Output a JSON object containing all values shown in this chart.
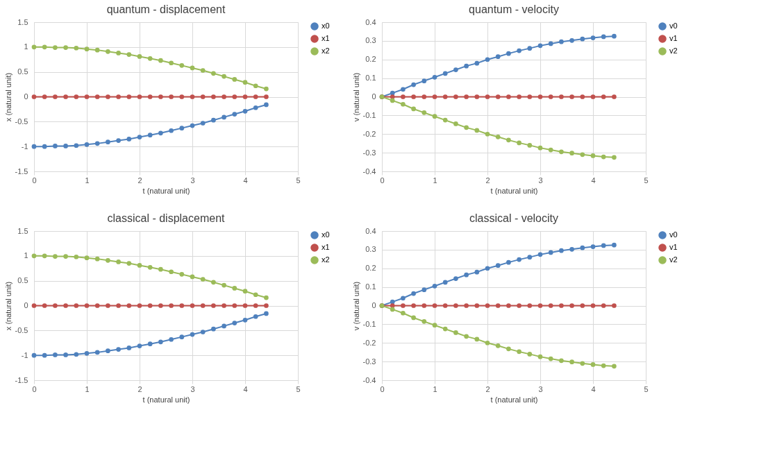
{
  "chart_data": [
    {
      "type": "line",
      "title": "quantum - displacement",
      "xlabel": "t (natural unit)",
      "ylabel": "x (natural unit)",
      "x": [
        0,
        0.2,
        0.4,
        0.6,
        0.8,
        1,
        1.2,
        1.4,
        1.6,
        1.8,
        2,
        2.2,
        2.4,
        2.6,
        2.8,
        3,
        3.2,
        3.4,
        3.6,
        3.8,
        4,
        4.2,
        4.4
      ],
      "xlim": [
        0,
        5
      ],
      "xticks": [
        0,
        1,
        2,
        3,
        4,
        5
      ],
      "ylim": [
        -1.5,
        1.5
      ],
      "yticks": [
        -1.5,
        -1,
        -0.5,
        0,
        0.5,
        1,
        1.5
      ],
      "grid": true,
      "legend": "right",
      "marker": "circle",
      "line_style": "solid",
      "series": [
        {
          "name": "x0",
          "color": "#4f81bd",
          "values": [
            -1.0,
            -1.0,
            -0.99,
            -0.99,
            -0.98,
            -0.96,
            -0.94,
            -0.91,
            -0.88,
            -0.85,
            -0.81,
            -0.77,
            -0.73,
            -0.68,
            -0.63,
            -0.58,
            -0.53,
            -0.47,
            -0.41,
            -0.35,
            -0.29,
            -0.22,
            -0.16
          ]
        },
        {
          "name": "x1",
          "color": "#c0504d",
          "values": [
            0,
            0,
            0,
            0,
            0,
            0,
            0,
            0,
            0,
            0,
            0,
            0,
            0,
            0,
            0,
            0,
            0,
            0,
            0,
            0,
            0,
            0,
            0
          ]
        },
        {
          "name": "x2",
          "color": "#9bbb59",
          "values": [
            1.0,
            1.0,
            0.99,
            0.99,
            0.98,
            0.96,
            0.94,
            0.91,
            0.88,
            0.85,
            0.81,
            0.77,
            0.73,
            0.68,
            0.63,
            0.58,
            0.53,
            0.47,
            0.41,
            0.35,
            0.29,
            0.22,
            0.16
          ]
        }
      ]
    },
    {
      "type": "line",
      "title": "quantum - velocity",
      "xlabel": "t (natural unit)",
      "ylabel": "v (natural unit)",
      "x": [
        0,
        0.2,
        0.4,
        0.6,
        0.8,
        1,
        1.2,
        1.4,
        1.6,
        1.8,
        2,
        2.2,
        2.4,
        2.6,
        2.8,
        3,
        3.2,
        3.4,
        3.6,
        3.8,
        4,
        4.2,
        4.4
      ],
      "xlim": [
        0,
        5
      ],
      "xticks": [
        0,
        1,
        2,
        3,
        4,
        5
      ],
      "ylim": [
        -0.4,
        0.4
      ],
      "yticks": [
        -0.4,
        -0.3,
        -0.2,
        -0.1,
        0,
        0.1,
        0.2,
        0.3,
        0.4
      ],
      "grid": true,
      "legend": "right",
      "marker": "circle",
      "line_style": "solid",
      "series": [
        {
          "name": "v0",
          "color": "#4f81bd",
          "values": [
            0,
            0.02,
            0.04,
            0.065,
            0.085,
            0.105,
            0.125,
            0.145,
            0.165,
            0.18,
            0.2,
            0.215,
            0.232,
            0.247,
            0.26,
            0.274,
            0.285,
            0.295,
            0.302,
            0.31,
            0.316,
            0.322,
            0.325
          ]
        },
        {
          "name": "v1",
          "color": "#c0504d",
          "values": [
            0,
            0,
            0,
            0,
            0,
            0,
            0,
            0,
            0,
            0,
            0,
            0,
            0,
            0,
            0,
            0,
            0,
            0,
            0,
            0,
            0,
            0,
            0
          ]
        },
        {
          "name": "v2",
          "color": "#9bbb59",
          "values": [
            0,
            -0.02,
            -0.04,
            -0.065,
            -0.085,
            -0.105,
            -0.125,
            -0.145,
            -0.165,
            -0.18,
            -0.2,
            -0.215,
            -0.232,
            -0.247,
            -0.26,
            -0.274,
            -0.285,
            -0.295,
            -0.302,
            -0.31,
            -0.316,
            -0.322,
            -0.325
          ]
        }
      ]
    },
    {
      "type": "line",
      "title": "classical - displacement",
      "xlabel": "t (natural unit)",
      "ylabel": "x (natural unit)",
      "x": [
        0,
        0.2,
        0.4,
        0.6,
        0.8,
        1,
        1.2,
        1.4,
        1.6,
        1.8,
        2,
        2.2,
        2.4,
        2.6,
        2.8,
        3,
        3.2,
        3.4,
        3.6,
        3.8,
        4,
        4.2,
        4.4
      ],
      "xlim": [
        0,
        5
      ],
      "xticks": [
        0,
        1,
        2,
        3,
        4,
        5
      ],
      "ylim": [
        -1.5,
        1.5
      ],
      "yticks": [
        -1.5,
        -1,
        -0.5,
        0,
        0.5,
        1,
        1.5
      ],
      "grid": true,
      "legend": "right",
      "marker": "circle",
      "line_style": "solid",
      "series": [
        {
          "name": "x0",
          "color": "#4f81bd",
          "values": [
            -1.0,
            -1.0,
            -0.99,
            -0.99,
            -0.98,
            -0.96,
            -0.94,
            -0.91,
            -0.88,
            -0.85,
            -0.81,
            -0.77,
            -0.73,
            -0.68,
            -0.63,
            -0.58,
            -0.53,
            -0.47,
            -0.41,
            -0.35,
            -0.29,
            -0.22,
            -0.16
          ]
        },
        {
          "name": "x1",
          "color": "#c0504d",
          "values": [
            0,
            0,
            0,
            0,
            0,
            0,
            0,
            0,
            0,
            0,
            0,
            0,
            0,
            0,
            0,
            0,
            0,
            0,
            0,
            0,
            0,
            0,
            0
          ]
        },
        {
          "name": "x2",
          "color": "#9bbb59",
          "values": [
            1.0,
            1.0,
            0.99,
            0.99,
            0.98,
            0.96,
            0.94,
            0.91,
            0.88,
            0.85,
            0.81,
            0.77,
            0.73,
            0.68,
            0.63,
            0.58,
            0.53,
            0.47,
            0.41,
            0.35,
            0.29,
            0.22,
            0.16
          ]
        }
      ]
    },
    {
      "type": "line",
      "title": "classical - velocity",
      "xlabel": "t (natural unit)",
      "ylabel": "v (natural unit)",
      "x": [
        0,
        0.2,
        0.4,
        0.6,
        0.8,
        1,
        1.2,
        1.4,
        1.6,
        1.8,
        2,
        2.2,
        2.4,
        2.6,
        2.8,
        3,
        3.2,
        3.4,
        3.6,
        3.8,
        4,
        4.2,
        4.4
      ],
      "xlim": [
        0,
        5
      ],
      "xticks": [
        0,
        1,
        2,
        3,
        4,
        5
      ],
      "ylim": [
        -0.4,
        0.4
      ],
      "yticks": [
        -0.4,
        -0.3,
        -0.2,
        -0.1,
        0,
        0.1,
        0.2,
        0.3,
        0.4
      ],
      "grid": true,
      "legend": "right",
      "marker": "circle",
      "line_style": "solid",
      "series": [
        {
          "name": "v0",
          "color": "#4f81bd",
          "values": [
            0,
            0.02,
            0.04,
            0.065,
            0.085,
            0.105,
            0.125,
            0.145,
            0.165,
            0.18,
            0.2,
            0.215,
            0.232,
            0.247,
            0.26,
            0.274,
            0.285,
            0.295,
            0.302,
            0.31,
            0.316,
            0.322,
            0.325
          ]
        },
        {
          "name": "v1",
          "color": "#c0504d",
          "values": [
            0,
            0,
            0,
            0,
            0,
            0,
            0,
            0,
            0,
            0,
            0,
            0,
            0,
            0,
            0,
            0,
            0,
            0,
            0,
            0,
            0,
            0,
            0
          ]
        },
        {
          "name": "v2",
          "color": "#9bbb59",
          "values": [
            0,
            -0.02,
            -0.04,
            -0.065,
            -0.085,
            -0.105,
            -0.125,
            -0.145,
            -0.165,
            -0.18,
            -0.2,
            -0.215,
            -0.232,
            -0.247,
            -0.26,
            -0.274,
            -0.285,
            -0.295,
            -0.302,
            -0.31,
            -0.316,
            -0.322,
            -0.325
          ]
        }
      ]
    }
  ]
}
